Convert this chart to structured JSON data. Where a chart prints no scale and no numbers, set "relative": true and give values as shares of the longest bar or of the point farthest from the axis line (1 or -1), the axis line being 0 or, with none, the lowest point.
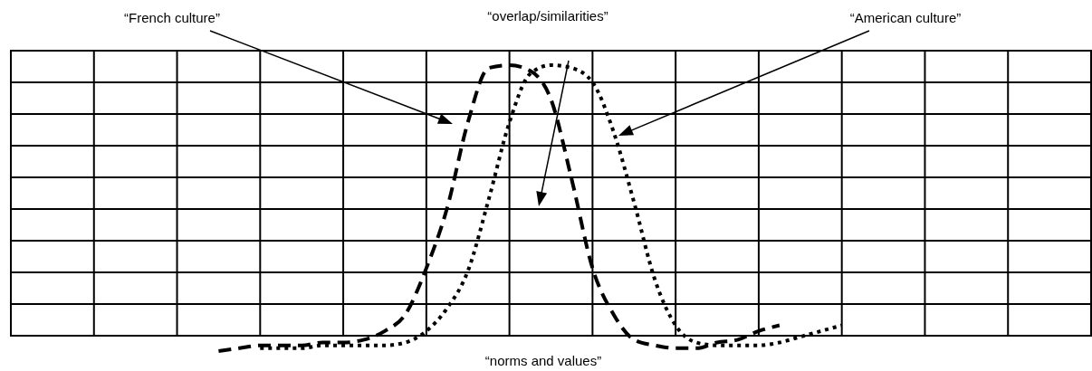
{
  "chart_data": {
    "type": "line",
    "relative": true,
    "xlabel": "“norms and values”",
    "annotations": [
      "“French culture”",
      "“overlap/similarities”",
      "“American culture”"
    ],
    "categories": [
      null,
      null,
      null,
      null,
      null,
      null,
      null,
      null,
      null,
      null,
      null,
      null,
      null,
      null,
      null,
      null,
      null,
      null,
      null,
      null,
      null,
      null,
      null,
      null,
      null,
      null,
      null,
      null,
      null,
      null,
      null,
      null,
      null,
      null,
      null,
      null,
      null,
      null,
      null,
      null,
      null,
      null,
      null,
      null,
      null,
      null,
      null,
      null,
      null,
      null,
      null,
      null,
      null
    ],
    "series": [
      {
        "color": "#000000",
        "line_style": "dashed",
        "values": [
          null,
          null,
          null,
          null,
          null,
          null,
          null,
          null,
          null,
          null,
          0,
          0.01,
          0.02,
          0.02,
          0.02,
          0.03,
          0.03,
          0.04,
          0.07,
          0.13,
          0.29,
          0.5,
          0.8,
          0.99,
          1,
          0.98,
          0.88,
          0.6,
          0.29,
          0.13,
          0.04,
          0.02,
          0.01,
          0.01,
          0.03,
          0.04,
          0.07,
          0.09,
          null,
          null,
          null,
          null,
          null,
          null,
          null,
          null,
          null,
          null,
          null,
          null,
          null,
          null,
          null
        ]
      },
      {
        "color": "#000000",
        "line_style": "dotted",
        "values": [
          null,
          null,
          null,
          null,
          null,
          null,
          null,
          null,
          null,
          null,
          null,
          null,
          0.01,
          0.01,
          0.01,
          0.02,
          0.02,
          0.02,
          0.02,
          0.03,
          0.07,
          0.15,
          0.28,
          0.53,
          0.8,
          0.97,
          1,
          0.99,
          0.94,
          0.77,
          0.52,
          0.25,
          0.09,
          0.03,
          0.02,
          0.02,
          0.02,
          0.03,
          0.05,
          0.07,
          0.09,
          null,
          null,
          null,
          null,
          null,
          null,
          null,
          null,
          null,
          null,
          null,
          null
        ]
      }
    ],
    "grid": true,
    "marker": "none"
  }
}
